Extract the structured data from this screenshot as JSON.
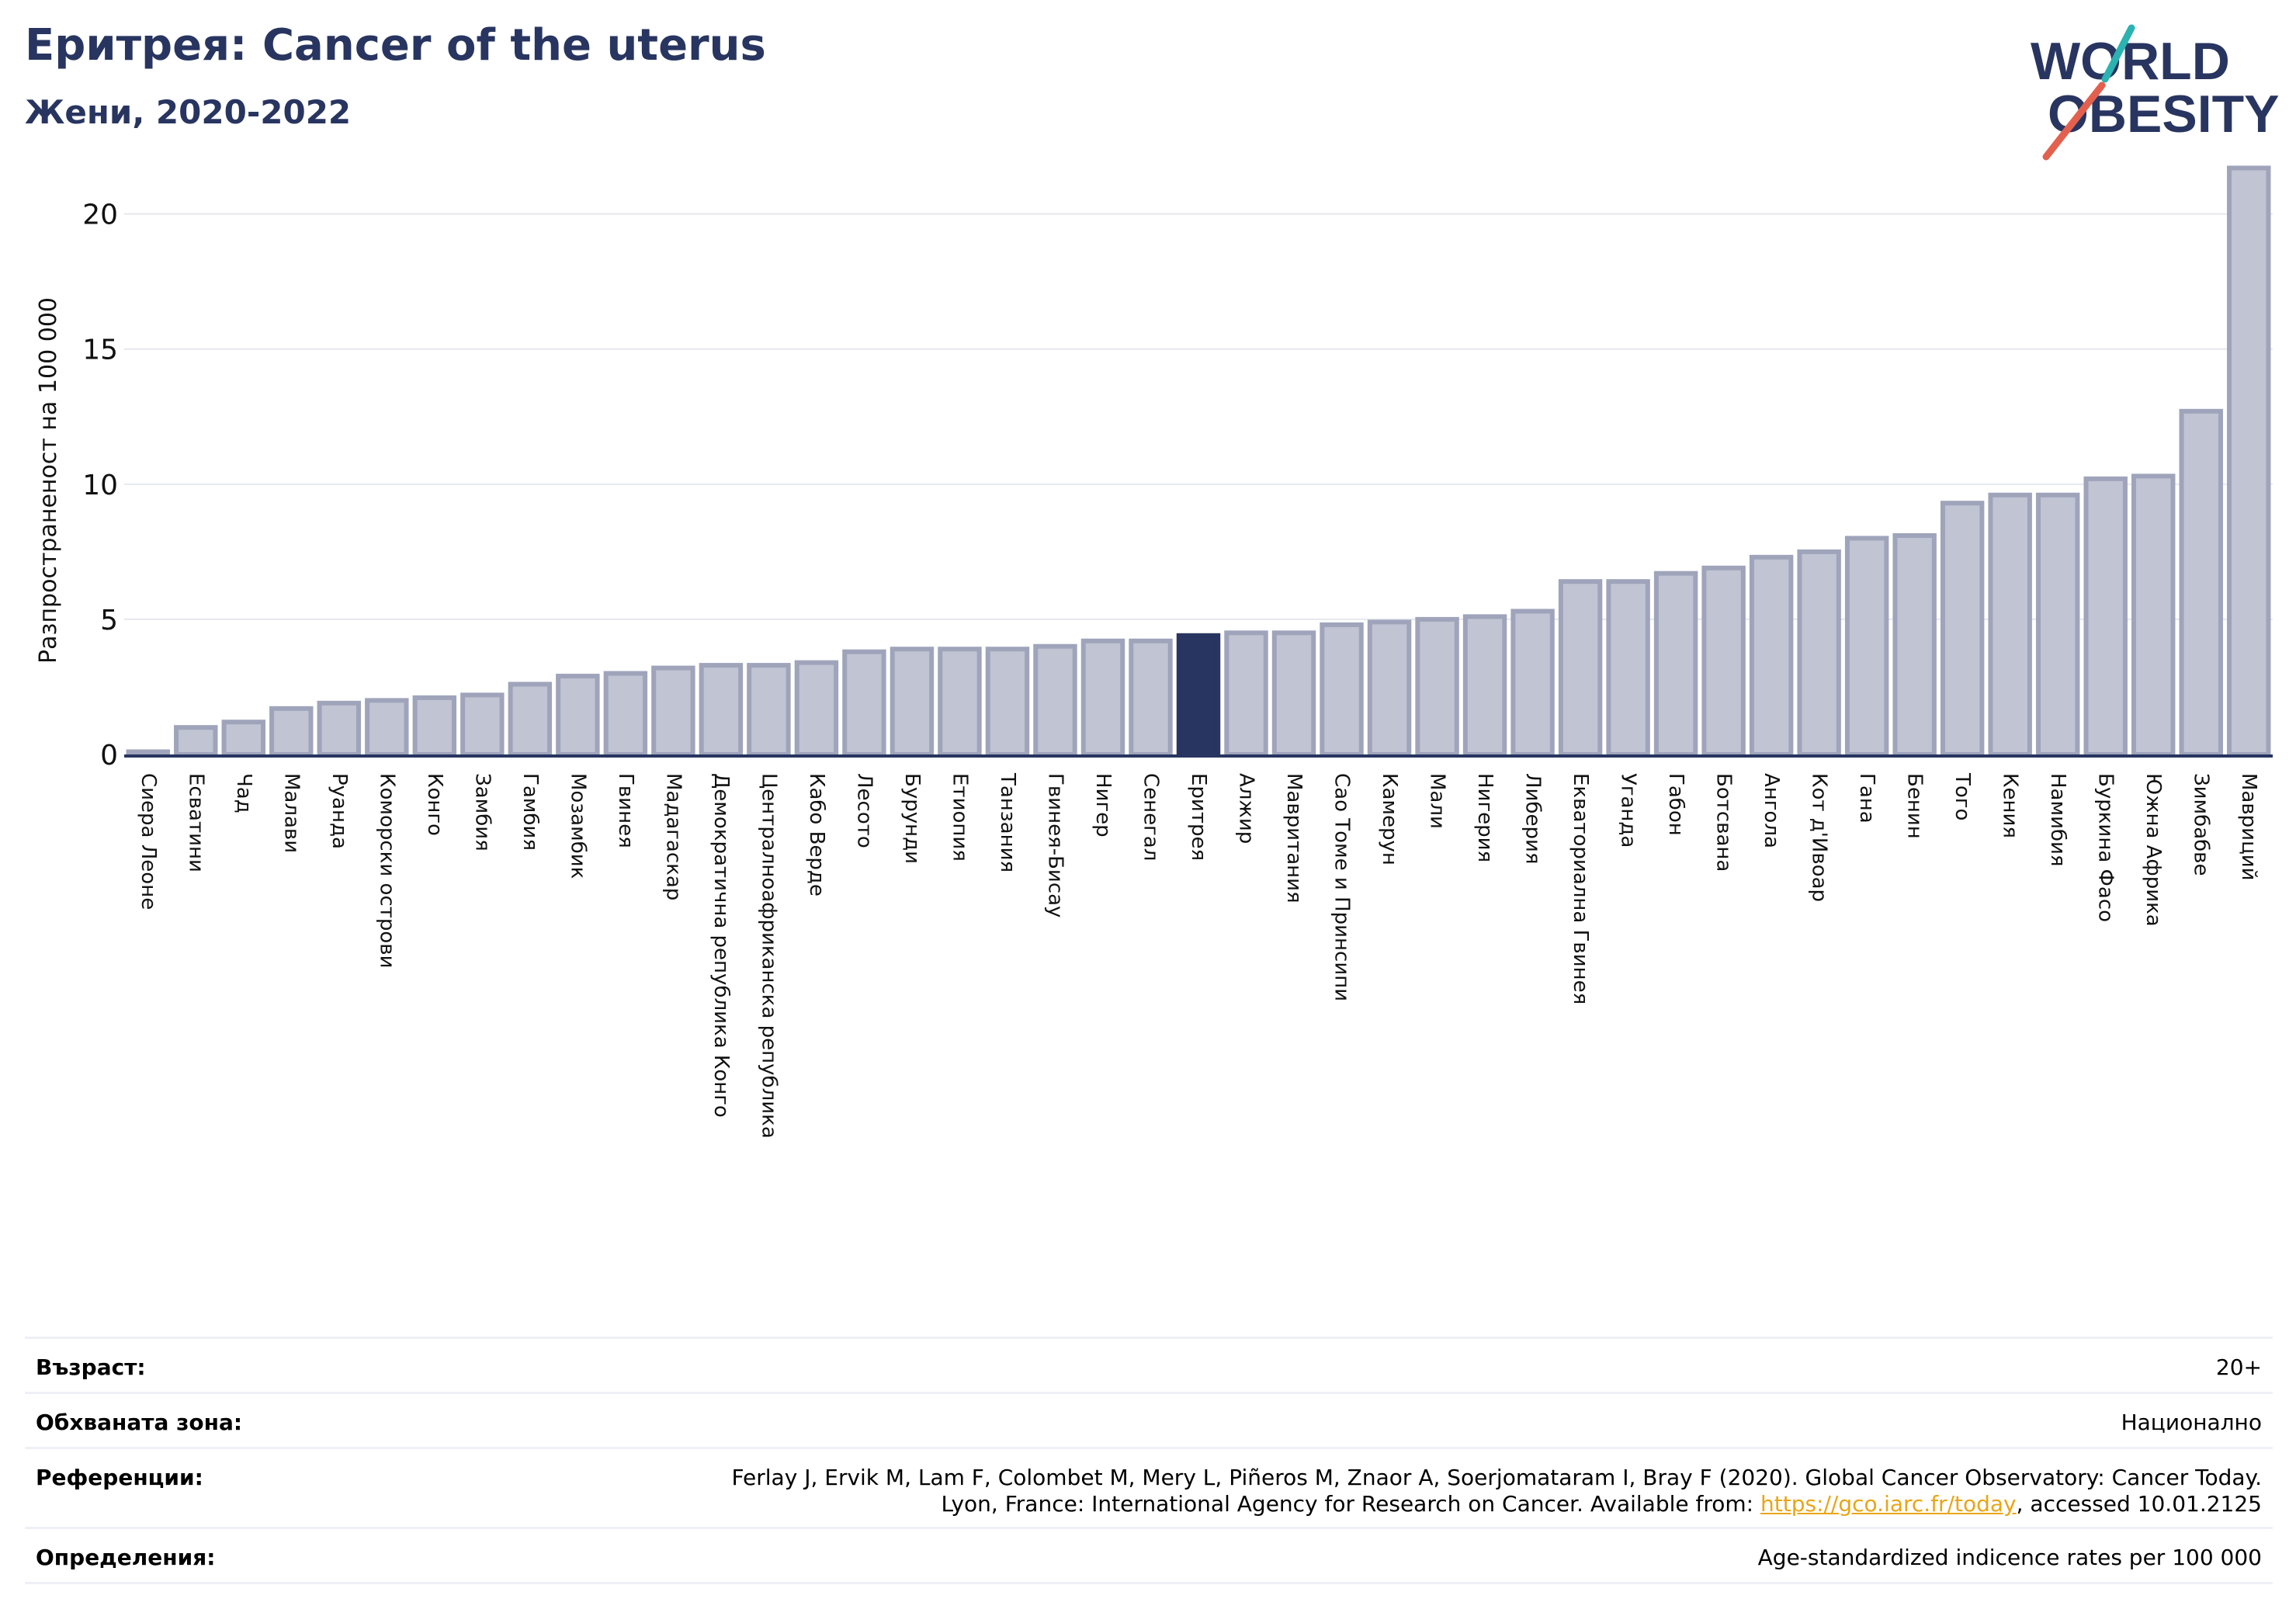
{
  "header": {
    "title": "Еритрея: Cancer of the uterus",
    "subtitle": "Жени, 2020-2022"
  },
  "logo": {
    "line1": "WORLD",
    "line2": "OBESITY",
    "colors": {
      "navy": "#283560",
      "teal": "#2bb3b1",
      "coral": "#e4604e"
    }
  },
  "colors": {
    "bar": "#c0c4d3",
    "bar_border": "#9fa4bb",
    "highlight": "#283560",
    "gridline": "#e6e8ef",
    "axis": "#283560"
  },
  "chart_data": {
    "type": "bar",
    "title": "Еритрея: Cancer of the uterus",
    "subtitle": "Жени, 2020-2022",
    "ylabel": "Разпространеност  на 100 000",
    "xlabel": "",
    "ylim": [
      0,
      22
    ],
    "yticks": [
      0,
      5,
      10,
      15,
      20
    ],
    "grid": true,
    "highlight": "Еритрея",
    "categories": [
      "Сиера Леоне",
      "Есватини",
      "Чад",
      "Малави",
      "Руанда",
      "Коморски острови",
      "Конго",
      "Замбия",
      "Гамбия",
      "Мозамбик",
      "Гвинея",
      "Мадагаскар",
      "Демократична република Конго",
      "Централноафриканска република",
      "Кабо Верде",
      "Лесото",
      "Бурунди",
      "Етиопия",
      "Танзания",
      "Гвинея-Бисау",
      "Нигер",
      "Сенегал",
      "Еритрея",
      "Алжир",
      "Мавритания",
      "Сао Томе и Принсипи",
      "Камерун",
      "Мали",
      "Нигерия",
      "Либерия",
      "Екваториална Гвинея",
      "Уганда",
      "Габон",
      "Ботсвана",
      "Ангола",
      "Кот д'Ивоар",
      "Гана",
      "Бенин",
      "Того",
      "Кения",
      "Намибия",
      "Буркина Фасо",
      "Южна Африка",
      "Зимбабве",
      "Мавриций"
    ],
    "values": [
      0.1,
      1.0,
      1.2,
      1.7,
      1.9,
      2.0,
      2.1,
      2.2,
      2.6,
      2.9,
      3.0,
      3.2,
      3.3,
      3.3,
      3.4,
      3.8,
      3.9,
      3.9,
      3.9,
      4.0,
      4.2,
      4.2,
      4.4,
      4.5,
      4.5,
      4.8,
      4.9,
      5.0,
      5.1,
      5.3,
      6.4,
      6.4,
      6.7,
      6.9,
      7.3,
      7.5,
      8.0,
      8.1,
      9.3,
      9.6,
      9.6,
      10.2,
      10.3,
      12.7,
      21.7
    ]
  },
  "meta": {
    "age_label": "Възраст:",
    "age_value": "20+",
    "coverage_label": "Обхваната зона:",
    "coverage_value": "Национално",
    "references_label": "Референции:",
    "references_line1": "Ferlay J, Ervik M, Lam F, Colombet M, Mery L, Piñeros M, Znaor A, Soerjomataram I, Bray F (2020). Global Cancer Observatory: Cancer Today.",
    "references_line2_pre": "Lyon, France: International Agency for Research on Cancer. Available from: ",
    "references_link": "https://gco.iarc.fr/today",
    "references_line2_post": ", accessed 10.01.2125",
    "definitions_label": "Определения:",
    "definitions_value": "Age-standardized indicence rates per 100 000"
  }
}
